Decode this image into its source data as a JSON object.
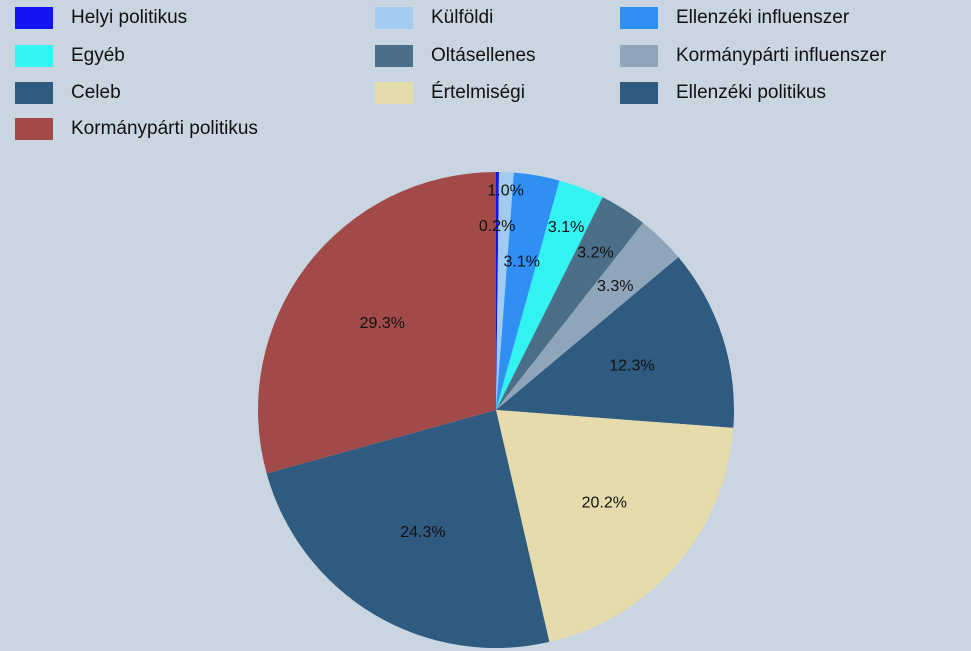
{
  "chart_data": {
    "type": "pie",
    "categories": [
      "Helyi politikus",
      "Külföldi",
      "Ellenzéki influenszer",
      "Egyéb",
      "Oltásellenes",
      "Kormánypárti influenszer",
      "Ellenzéki politikus",
      "Értelmiségi",
      "Celeb",
      "Kormánypárti politikus"
    ],
    "values": [
      0.2,
      1.0,
      3.1,
      3.1,
      3.2,
      3.3,
      12.3,
      20.2,
      24.3,
      29.3
    ],
    "value_labels": [
      "0.2%",
      "1.0%",
      "3.1%",
      "3.1%",
      "3.2%",
      "3.3%",
      "12.3%",
      "20.2%",
      "24.3%",
      "29.3%"
    ],
    "colors": [
      "#1414f0",
      "#a2cbf0",
      "#2f8ff2",
      "#33f2f2",
      "#4b6f88",
      "#8fa5b9",
      "#2f5b81",
      "#e6dcab",
      "#2f5b81",
      "#a24a4a"
    ]
  }
}
